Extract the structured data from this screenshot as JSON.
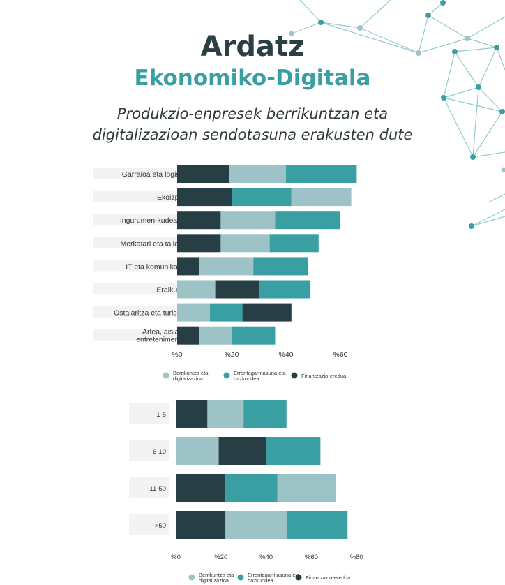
{
  "header": {
    "title_line1": "Ardatz",
    "title_line2": "Ekonomiko-Digitala",
    "subtitle_line1": "Produkzio-enpresek berrikuntzan eta",
    "subtitle_line2": "digitalizazioan sendotasuna erakusten dute"
  },
  "colors": {
    "berrikuntza": "#9dc3c6",
    "errentagarritasuna": "#3a9fa3",
    "finantzazioa": "#273f44",
    "network": "#3a9fa3"
  },
  "chart_data": [
    {
      "type": "bar",
      "orientation": "horizontal",
      "stacked": true,
      "categories": [
        "Garraioa eta logistika",
        "Ekoizpena",
        "Ingurumen-kudeaketa",
        "Merkatari eta tailerrak",
        "IT eta komunikazioa",
        "Eraikuntza",
        "Ostalaritza eta turismoa",
        "Artea, aisia eta entretenimendua"
      ],
      "series": [
        {
          "name": "Finantzazio-eredua",
          "color_key": "finantzazioa",
          "values": [
            19,
            20,
            16,
            16,
            8,
            16,
            18,
            8
          ]
        },
        {
          "name": "Berrikuntza eta digitalizazioa",
          "color_key": "berrikuntza",
          "values": [
            21,
            22,
            20,
            18,
            20,
            14,
            12,
            12
          ]
        },
        {
          "name": "Errentagarritasuna eta hazkundea",
          "color_key": "errentagarritasuna",
          "values": [
            26,
            22,
            24,
            18,
            20,
            19,
            12,
            16
          ]
        }
      ],
      "segment_order": [
        [
          "finantzazioa",
          "berrikuntza",
          "errentagarritasuna"
        ],
        [
          "finantzazioa",
          "errentagarritasuna",
          "berrikuntza"
        ],
        [
          "finantzazioa",
          "berrikuntza",
          "errentagarritasuna"
        ],
        [
          "finantzazioa",
          "berrikuntza",
          "errentagarritasuna"
        ],
        [
          "finantzazioa",
          "berrikuntza",
          "errentagarritasuna"
        ],
        [
          "berrikuntza",
          "finantzazioa",
          "errentagarritasuna"
        ],
        [
          "berrikuntza",
          "errentagarritasuna",
          "finantzazioa"
        ],
        [
          "finantzazioa",
          "berrikuntza",
          "errentagarritasuna"
        ]
      ],
      "ticks": [
        "%0",
        "%20",
        "%40",
        "%60"
      ],
      "xlim": [
        0,
        68
      ],
      "legend": [
        {
          "label": "Berrikuntza eta digitalizazioa",
          "color_key": "berrikuntza"
        },
        {
          "label": "Errentagarritasuna eta hazkundea",
          "color_key": "errentagarritasuna"
        },
        {
          "label": "Finantzazio-eredua",
          "color_key": "finantzazioa"
        }
      ],
      "legend_position": "bottom"
    },
    {
      "type": "bar",
      "orientation": "horizontal",
      "stacked": true,
      "categories": [
        "1-5",
        "6-10",
        "11-50",
        ">50"
      ],
      "series": [
        {
          "name": "Finantzazio-eredua",
          "color_key": "finantzazioa",
          "values": [
            14,
            21,
            22,
            22
          ]
        },
        {
          "name": "Berrikuntza eta digitalizazioa",
          "color_key": "berrikuntza",
          "values": [
            16,
            19,
            26,
            27
          ]
        },
        {
          "name": "Errentagarritasuna eta hazkundea",
          "color_key": "errentagarritasuna",
          "values": [
            19,
            24,
            23,
            27
          ]
        }
      ],
      "segment_order": [
        [
          "finantzazioa",
          "berrikuntza",
          "errentagarritasuna"
        ],
        [
          "berrikuntza",
          "finantzazioa",
          "errentagarritasuna"
        ],
        [
          "finantzazioa",
          "errentagarritasuna",
          "berrikuntza"
        ],
        [
          "finantzazioa",
          "berrikuntza",
          "errentagarritasuna"
        ]
      ],
      "ticks": [
        "%0",
        "%20",
        "%40",
        "%60",
        "%80"
      ],
      "xlim": [
        0,
        80
      ],
      "legend": [
        {
          "label": "Berrikuntza eta digitalizazioa",
          "color_key": "berrikuntza"
        },
        {
          "label": "Errentagarritasuna eta hazkundea",
          "color_key": "errentagarritasuna"
        },
        {
          "label": "Finantzazio-eredua",
          "color_key": "finantzazioa"
        }
      ],
      "legend_position": "bottom"
    }
  ]
}
